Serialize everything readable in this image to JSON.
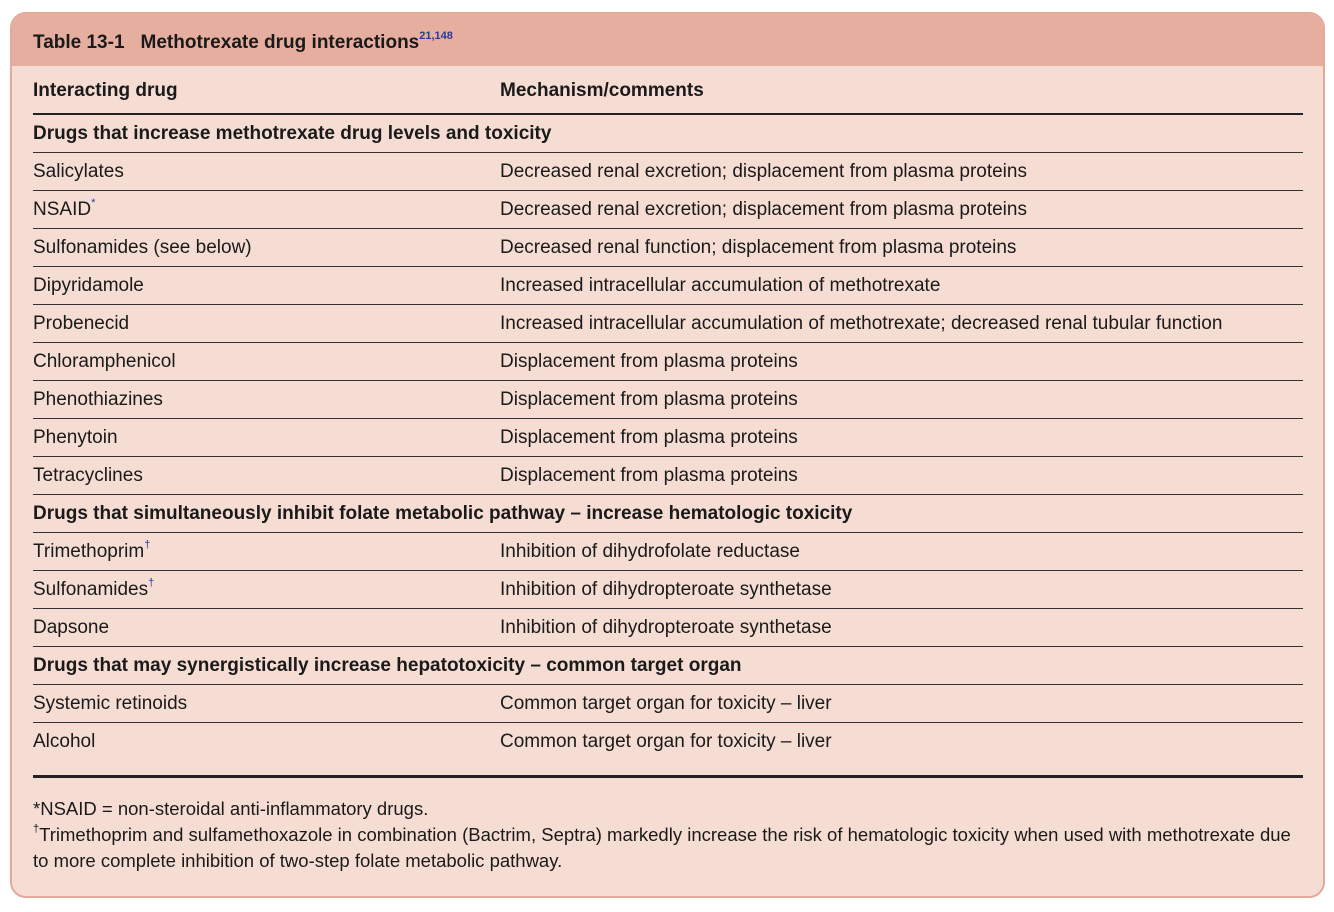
{
  "header": {
    "label": "Table 13-1",
    "title": "Methotrexate drug interactions",
    "refs": "21,148"
  },
  "table": {
    "columns": [
      "Interacting drug",
      "Mechanism/comments"
    ],
    "sections": [
      {
        "heading": "Drugs that increase methotrexate drug levels and toxicity",
        "rows": [
          {
            "drug": "Salicylates",
            "comment": "Decreased renal excretion; displacement from plasma proteins"
          },
          {
            "drug": "NSAID",
            "mark": "*",
            "comment": "Decreased renal excretion; displacement from plasma proteins"
          },
          {
            "drug": "Sulfonamides (see below)",
            "comment": "Decreased renal function; displacement from plasma proteins"
          },
          {
            "drug": "Dipyridamole",
            "comment": "Increased intracellular accumulation of methotrexate"
          },
          {
            "drug": "Probenecid",
            "comment": "Increased intracellular accumulation of methotrexate; decreased renal tubular function"
          },
          {
            "drug": "Chloramphenicol",
            "comment": "Displacement from plasma proteins"
          },
          {
            "drug": "Phenothiazines",
            "comment": "Displacement from plasma proteins"
          },
          {
            "drug": "Phenytoin",
            "comment": "Displacement from plasma proteins"
          },
          {
            "drug": "Tetracyclines",
            "comment": "Displacement from plasma proteins"
          }
        ]
      },
      {
        "heading": "Drugs that simultaneously inhibit folate metabolic pathway – increase hematologic toxicity",
        "rows": [
          {
            "drug": "Trimethoprim",
            "mark": "†",
            "comment": "Inhibition of dihydrofolate reductase"
          },
          {
            "drug": "Sulfonamides",
            "mark": "†",
            "comment": "Inhibition of dihydropteroate synthetase"
          },
          {
            "drug": "Dapsone",
            "comment": "Inhibition of dihydropteroate synthetase"
          }
        ]
      },
      {
        "heading": "Drugs that may synergistically increase hepatotoxicity – common target organ",
        "rows": [
          {
            "drug": "Systemic retinoids",
            "comment": "Common target organ for toxicity – liver"
          },
          {
            "drug": "Alcohol",
            "comment": "Common target organ for toxicity – liver"
          }
        ]
      }
    ]
  },
  "footnotes": [
    {
      "mark": "*",
      "text": "NSAID = non-steroidal anti-inflammatory drugs."
    },
    {
      "mark": "†",
      "text": "Trimethoprim and sulfamethoxazole in combination (Bactrim, Septra) markedly increase the risk of hematologic toxicity when used with methotrexate due to more complete inhibition of two-step folate metabolic pathway."
    }
  ]
}
